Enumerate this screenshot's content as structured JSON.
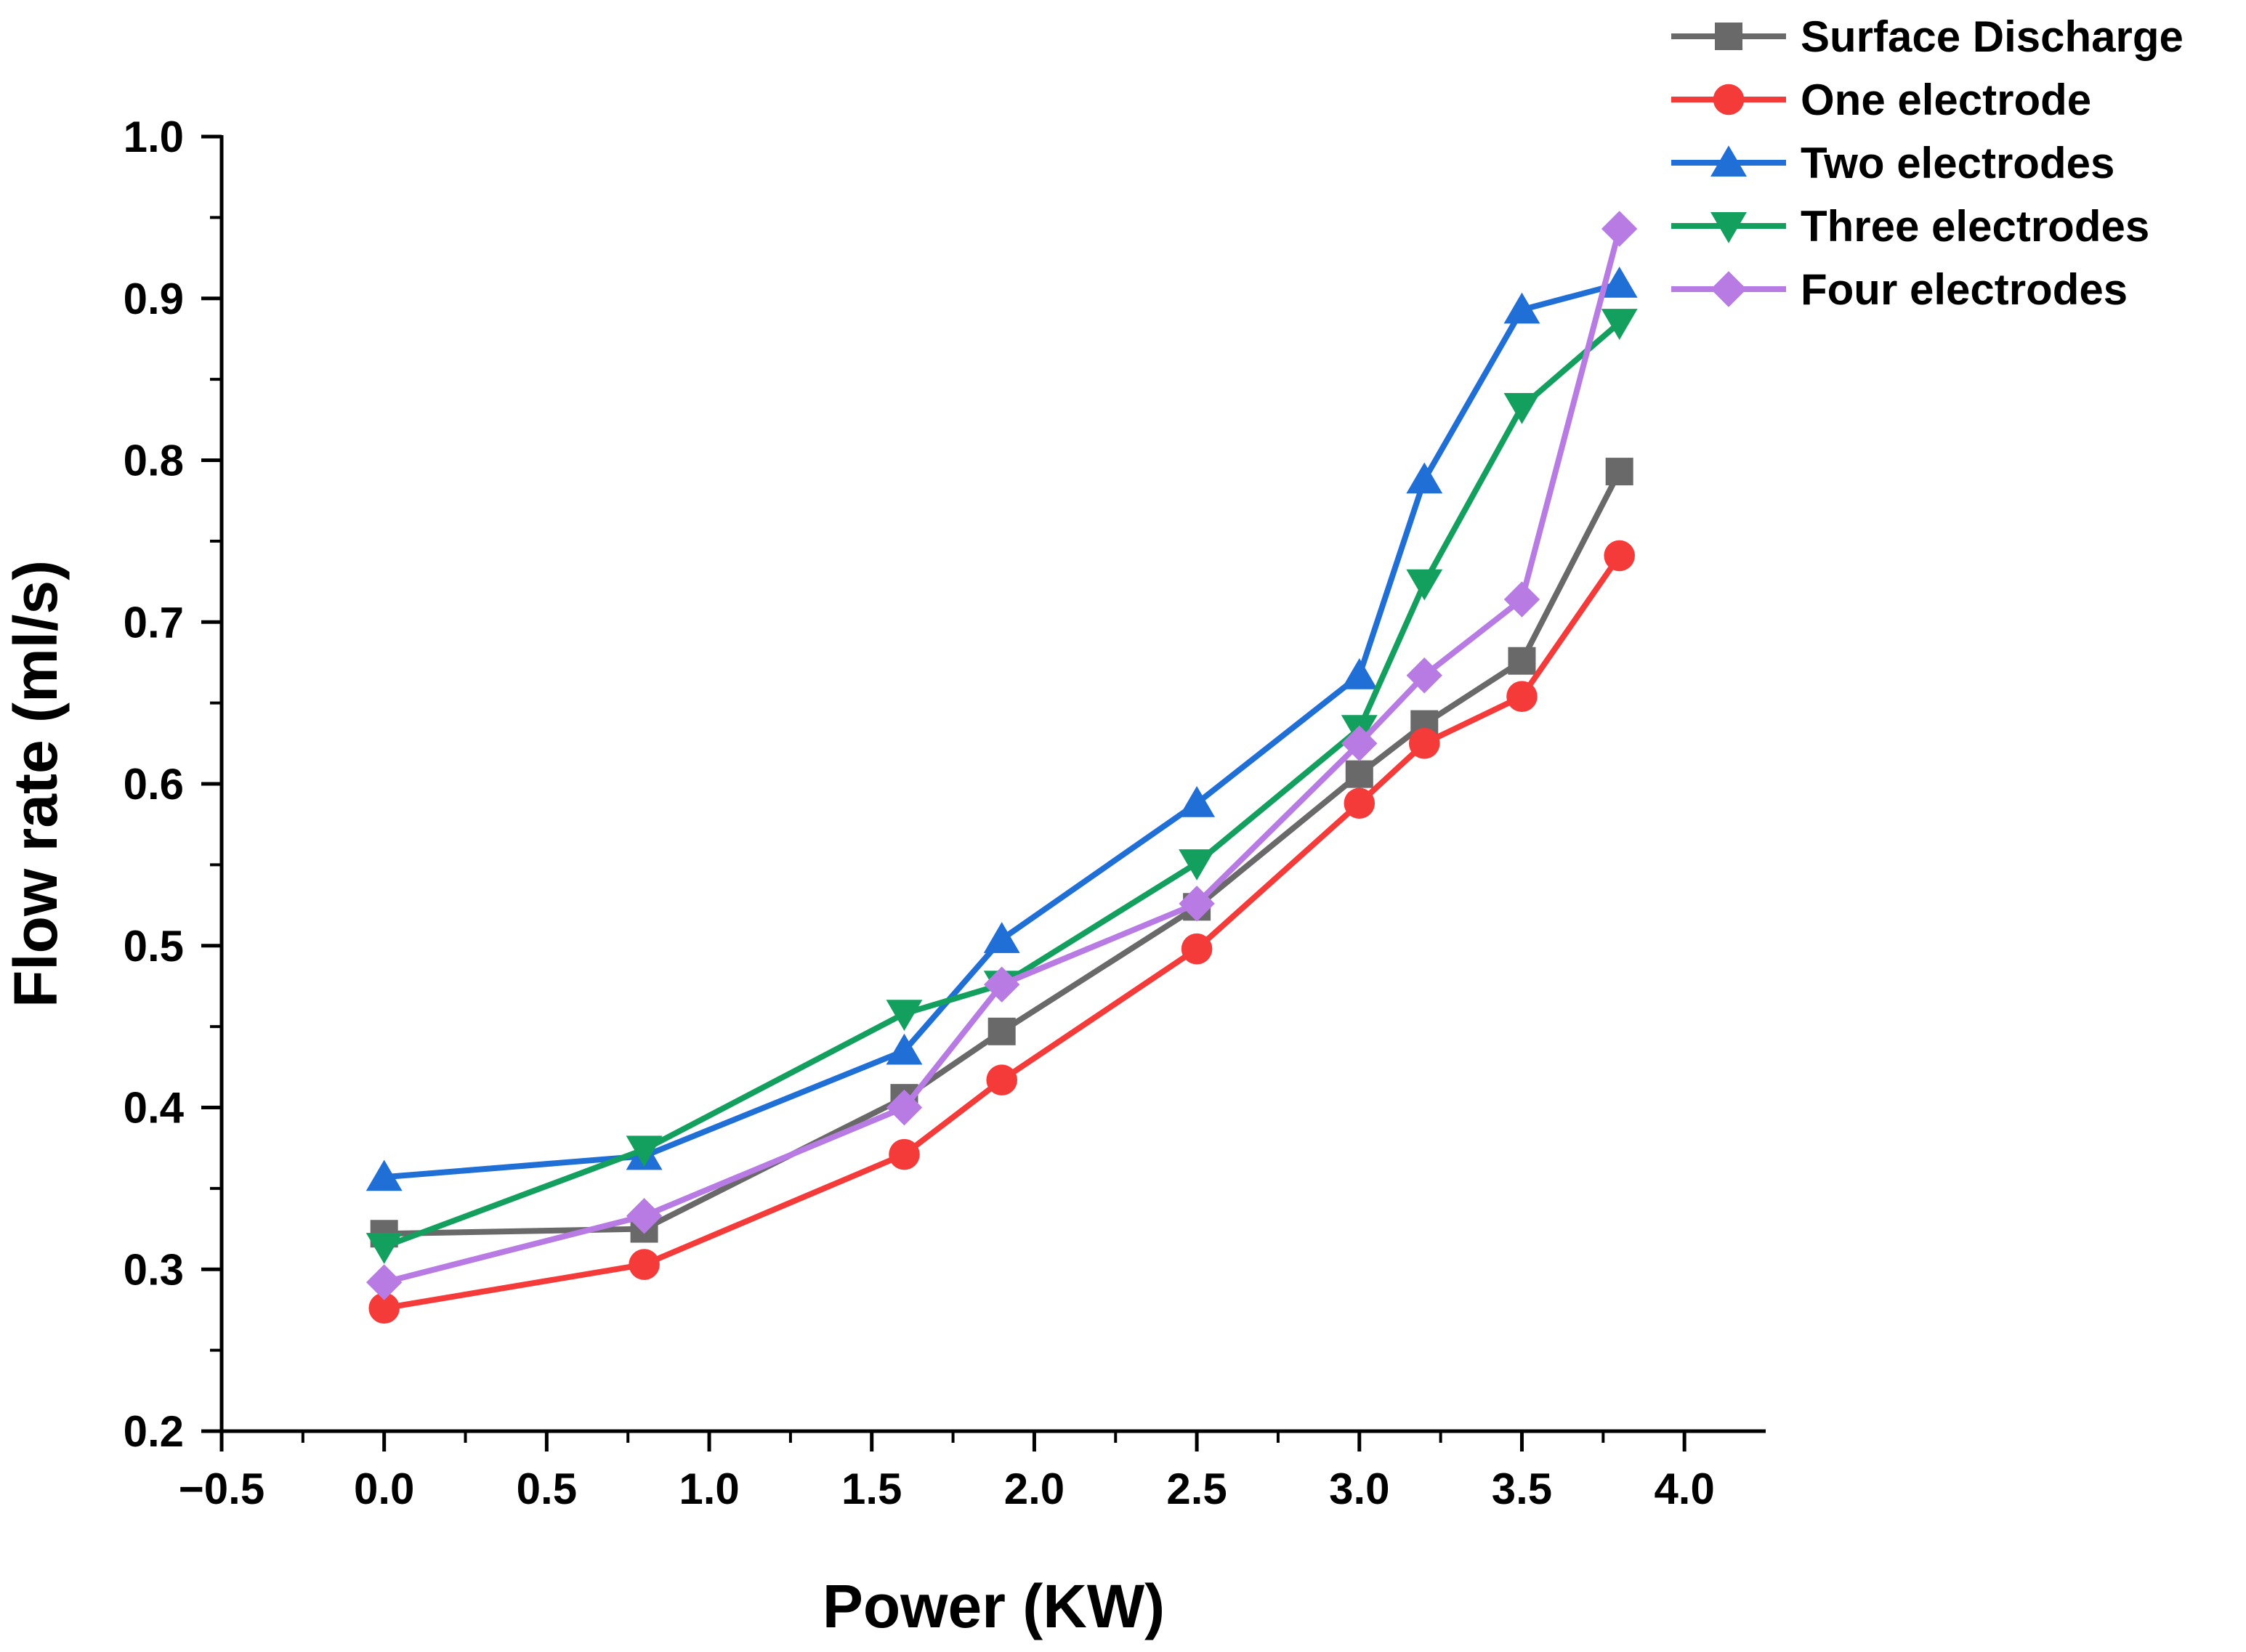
{
  "chart_data": {
    "type": "line",
    "title": "",
    "xlabel": "Power (KW)",
    "ylabel": "Flow rate (ml/s)",
    "xlim": [
      -0.5,
      4.25
    ],
    "ylim": [
      0.2,
      1.0
    ],
    "x_ticks": [
      -0.5,
      0.0,
      0.5,
      1.0,
      1.5,
      2.0,
      2.5,
      3.0,
      3.5,
      4.0
    ],
    "x_tick_labels": [
      "−0.5",
      "0.0",
      "0.5",
      "1.0",
      "1.5",
      "2.0",
      "2.5",
      "3.0",
      "3.5",
      "4.0"
    ],
    "y_ticks": [
      0.2,
      0.3,
      0.4,
      0.5,
      0.6,
      0.7,
      0.8,
      0.9,
      1.0
    ],
    "y_tick_labels": [
      "0.2",
      "0.3",
      "0.4",
      "0.5",
      "0.6",
      "0.7",
      "0.8",
      "0.9",
      "1.0"
    ],
    "x": [
      0.0,
      0.8,
      1.6,
      1.9,
      2.5,
      3.0,
      3.2,
      3.5,
      3.8
    ],
    "grid": false,
    "legend_position": "top-right",
    "series": [
      {
        "name": "Surface Discharge",
        "color": "#696969",
        "marker": "square",
        "values": [
          0.322,
          0.325,
          0.406,
          0.447,
          0.524,
          0.606,
          0.637,
          0.676,
          0.793
        ]
      },
      {
        "name": "One electrode",
        "color": "#f53a3a",
        "marker": "circle",
        "values": [
          0.276,
          0.303,
          0.371,
          0.417,
          0.498,
          0.588,
          0.625,
          0.654,
          0.741
        ]
      },
      {
        "name": "Two electrodes",
        "color": "#1f6fd6",
        "marker": "triangle-up",
        "values": [
          0.357,
          0.37,
          0.435,
          0.504,
          0.588,
          0.667,
          0.788,
          0.893,
          0.909
        ]
      },
      {
        "name": "Three electrodes",
        "color": "#13a05e",
        "marker": "triangle-down",
        "values": [
          0.314,
          0.374,
          0.458,
          0.476,
          0.551,
          0.634,
          0.724,
          0.833,
          0.885
        ]
      },
      {
        "name": "Four electrodes",
        "color": "#b77be3",
        "marker": "diamond",
        "values": [
          0.292,
          0.333,
          0.4,
          0.476,
          0.526,
          0.625,
          0.667,
          0.714,
          0.943
        ]
      }
    ]
  }
}
